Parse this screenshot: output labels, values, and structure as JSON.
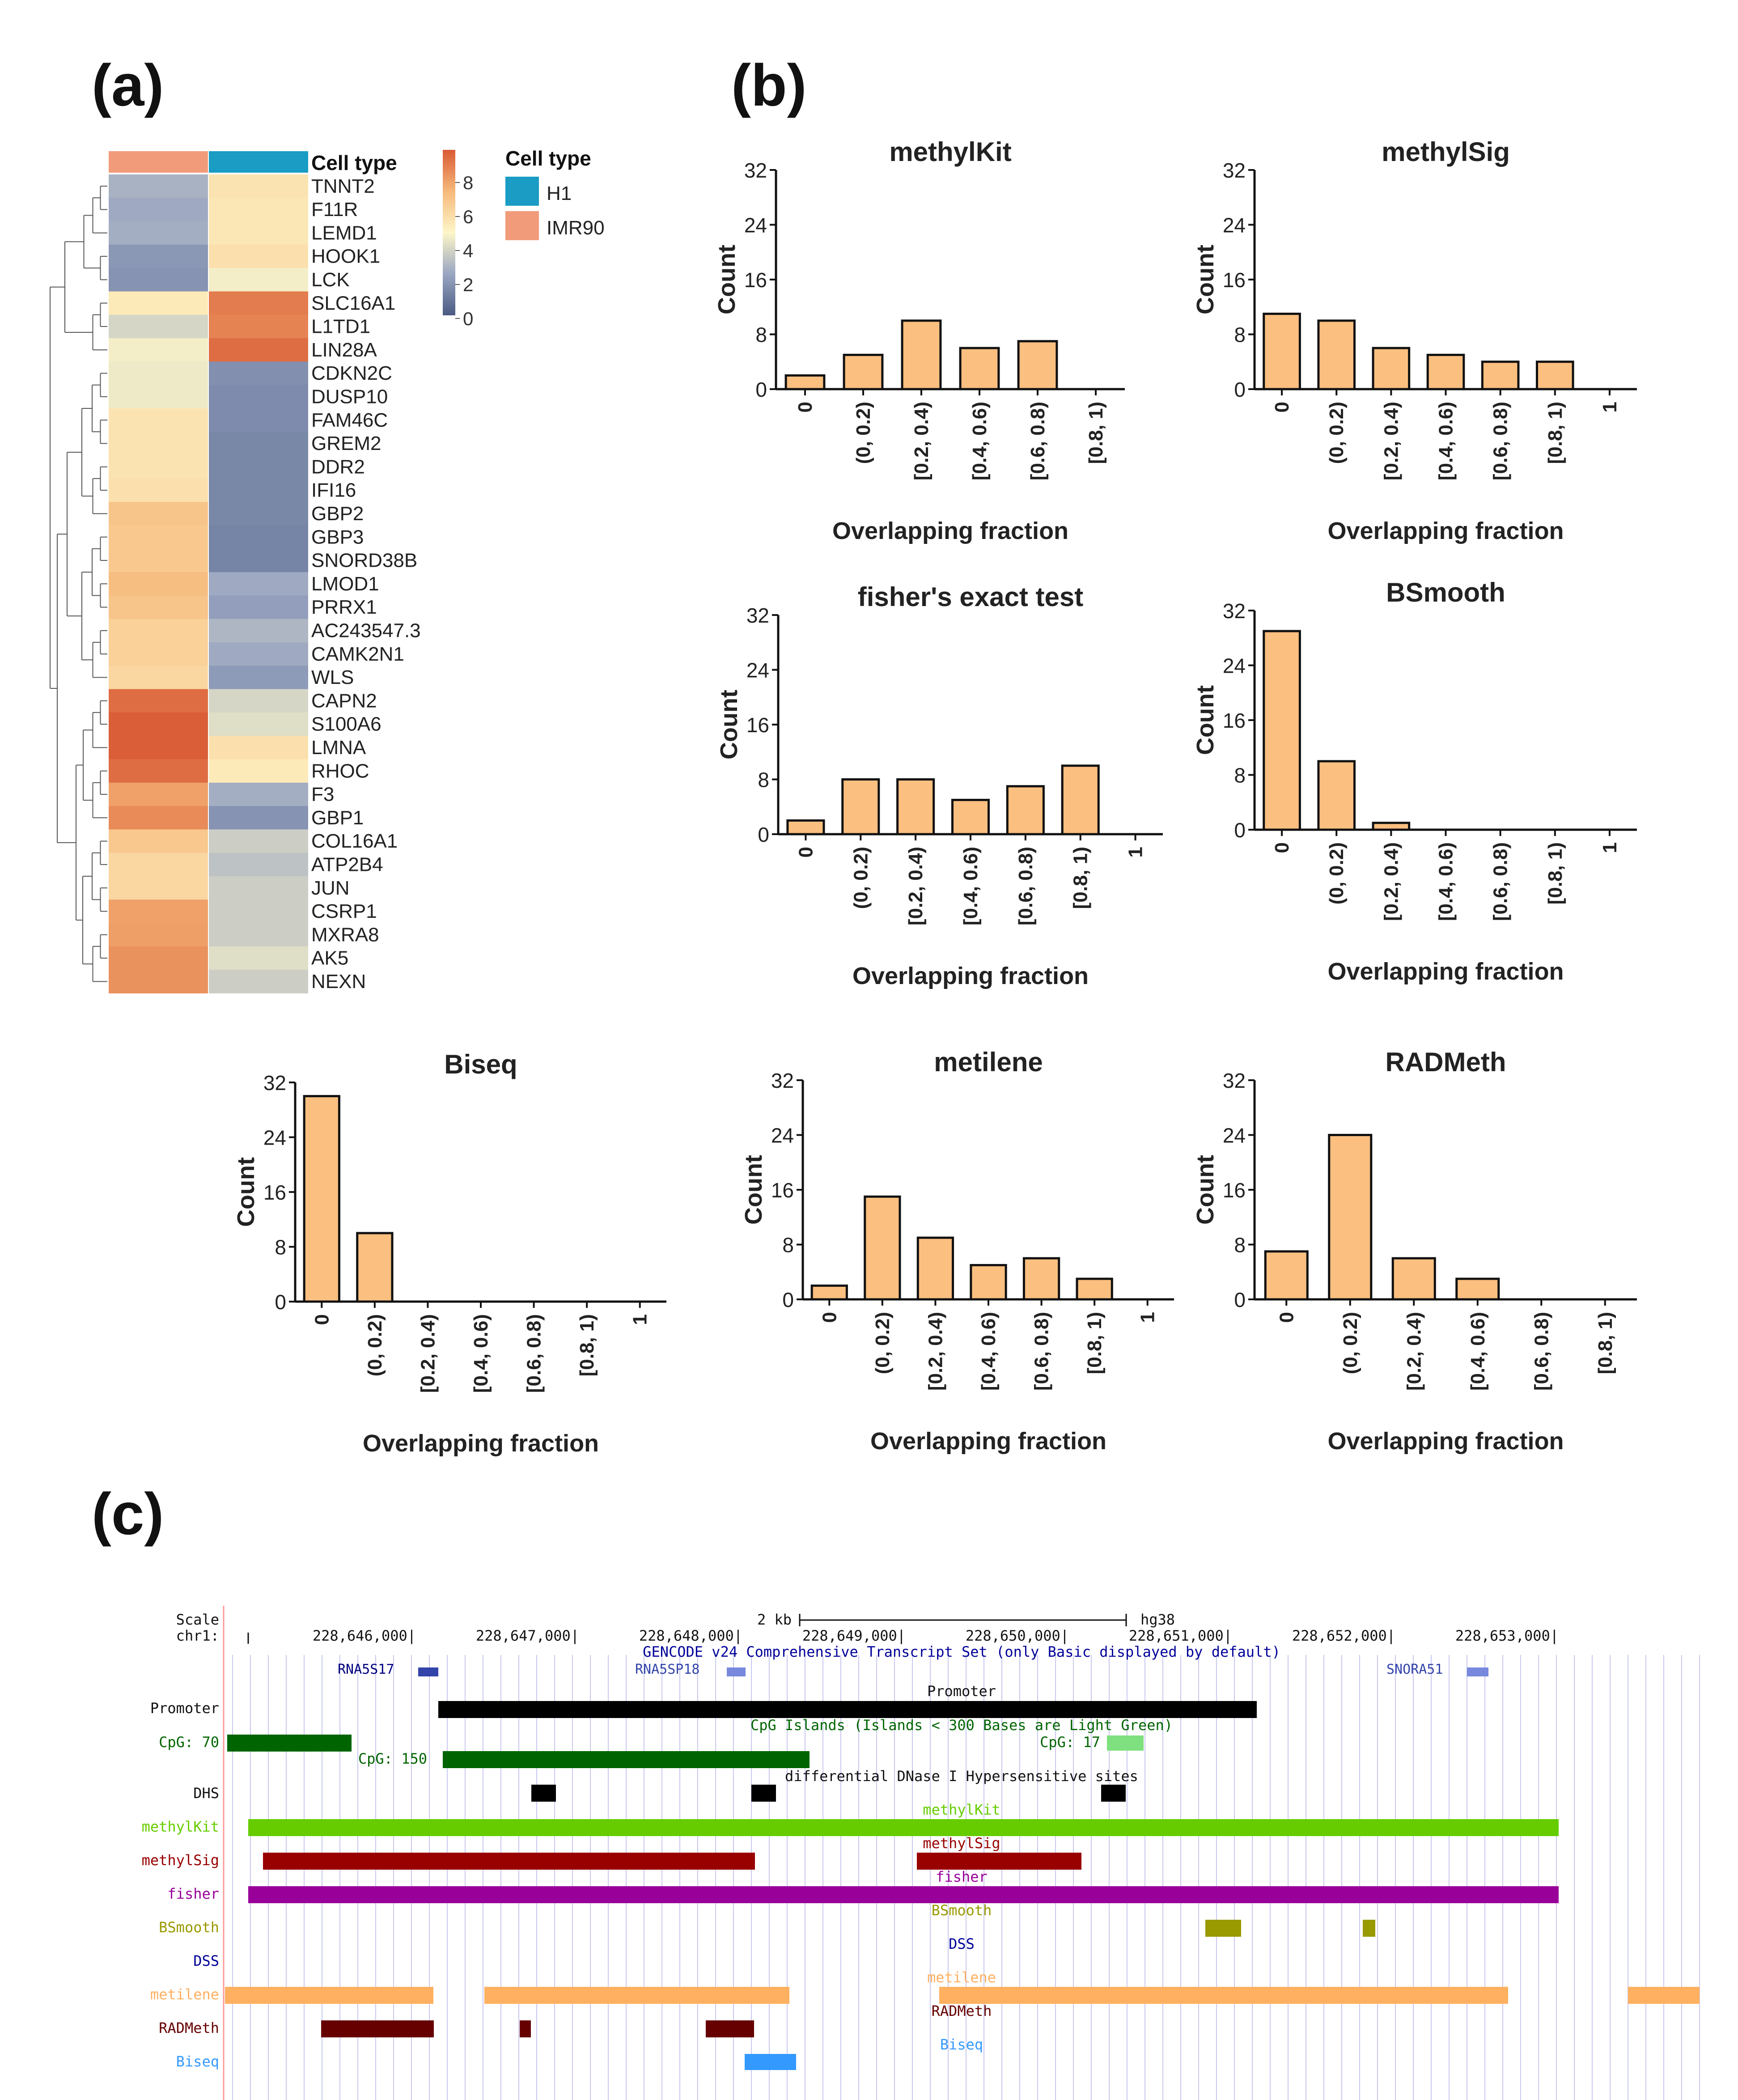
{
  "panels": {
    "a": "(a)",
    "b": "(b)",
    "c": "(c)"
  },
  "heatmap": {
    "annotation_label": "Cell type",
    "columns": [
      "IMR90",
      "H1"
    ],
    "colorbar_ticks": [
      "8",
      "6",
      "4",
      "2",
      "0"
    ],
    "legend_title": "Cell type",
    "legend_items": [
      {
        "label": "H1",
        "color": "#1a9cc4"
      },
      {
        "label": "IMR90",
        "color": "#f19b7b"
      }
    ],
    "rows": [
      {
        "gene": "TNNT2",
        "v": [
          2.3,
          4.6
        ]
      },
      {
        "gene": "F11R",
        "v": [
          2.1,
          4.5
        ]
      },
      {
        "gene": "LEMD1",
        "v": [
          2.2,
          4.5
        ]
      },
      {
        "gene": "HOOK1",
        "v": [
          1.6,
          4.7
        ]
      },
      {
        "gene": "LCK",
        "v": [
          1.5,
          3.8
        ]
      },
      {
        "gene": "SLC16A1",
        "v": [
          4.4,
          7.6
        ]
      },
      {
        "gene": "L1TD1",
        "v": [
          3.2,
          7.4
        ]
      },
      {
        "gene": "LIN28A",
        "v": [
          3.8,
          8.0
        ]
      },
      {
        "gene": "CDKN2C",
        "v": [
          3.7,
          1.4
        ]
      },
      {
        "gene": "DUSP10",
        "v": [
          3.7,
          1.3
        ]
      },
      {
        "gene": "FAM46C",
        "v": [
          4.6,
          1.3
        ]
      },
      {
        "gene": "GREM2",
        "v": [
          4.6,
          1.2
        ]
      },
      {
        "gene": "DDR2",
        "v": [
          4.6,
          1.2
        ]
      },
      {
        "gene": "IFI16",
        "v": [
          4.7,
          1.2
        ]
      },
      {
        "gene": "GBP2",
        "v": [
          5.6,
          1.2
        ]
      },
      {
        "gene": "GBP3",
        "v": [
          5.5,
          1.1
        ]
      },
      {
        "gene": "SNORD38B",
        "v": [
          5.5,
          1.1
        ]
      },
      {
        "gene": "LMOD1",
        "v": [
          5.8,
          2.1
        ]
      },
      {
        "gene": "PRRX1",
        "v": [
          5.6,
          1.8
        ]
      },
      {
        "gene": "AC243547.3",
        "v": [
          5.2,
          2.4
        ]
      },
      {
        "gene": "CAMK2N1",
        "v": [
          5.2,
          2.1
        ]
      },
      {
        "gene": "WLS",
        "v": [
          5.0,
          1.7
        ]
      },
      {
        "gene": "CAPN2",
        "v": [
          8.0,
          3.2
        ]
      },
      {
        "gene": "S100A6",
        "v": [
          8.4,
          3.4
        ]
      },
      {
        "gene": "LMNA",
        "v": [
          8.4,
          4.7
        ]
      },
      {
        "gene": "RHOC",
        "v": [
          8.0,
          4.4
        ]
      },
      {
        "gene": "F3",
        "v": [
          6.6,
          2.2
        ]
      },
      {
        "gene": "GBP1",
        "v": [
          7.2,
          1.5
        ]
      },
      {
        "gene": "COL16A1",
        "v": [
          5.5,
          3.0
        ]
      },
      {
        "gene": "ATP2B4",
        "v": [
          5.0,
          2.7
        ]
      },
      {
        "gene": "JUN",
        "v": [
          5.0,
          3.0
        ]
      },
      {
        "gene": "CSRP1",
        "v": [
          6.6,
          3.0
        ]
      },
      {
        "gene": "MXRA8",
        "v": [
          6.7,
          3.0
        ]
      },
      {
        "gene": "AK5",
        "v": [
          7.0,
          3.4
        ]
      },
      {
        "gene": "NEXN",
        "v": [
          7.0,
          3.0
        ]
      }
    ]
  },
  "chart_data": [
    {
      "type": "bar",
      "title": "methylKit",
      "xlabel": "Overlapping fraction",
      "ylabel": "Count",
      "yticks": [
        "0",
        "8",
        "16",
        "24",
        "32"
      ],
      "ylim": [
        0,
        32
      ],
      "categories": [
        "0",
        "(0, 0.2)",
        "[0.2, 0.4)",
        "[0.4, 0.6)",
        "[0.6, 0.8)",
        "[0.8, 1)"
      ],
      "values": [
        2,
        5,
        10,
        6,
        7,
        0
      ]
    },
    {
      "type": "bar",
      "title": "methylSig",
      "xlabel": "Overlapping fraction",
      "ylabel": "Count",
      "yticks": [
        "0",
        "8",
        "16",
        "24",
        "32"
      ],
      "ylim": [
        0,
        32
      ],
      "categories": [
        "0",
        "(0, 0.2)",
        "[0.2, 0.4)",
        "[0.4, 0.6)",
        "[0.6, 0.8)",
        "[0.8, 1)",
        "1"
      ],
      "values": [
        11,
        10,
        6,
        5,
        4,
        4,
        0
      ]
    },
    {
      "type": "bar",
      "title": "fisher's exact test",
      "xlabel": "Overlapping fraction",
      "ylabel": "Count",
      "yticks": [
        "0",
        "8",
        "16",
        "24",
        "32"
      ],
      "ylim": [
        0,
        32
      ],
      "categories": [
        "0",
        "(0, 0.2)",
        "[0.2, 0.4)",
        "[0.4, 0.6)",
        "[0.6, 0.8)",
        "[0.8, 1)",
        "1"
      ],
      "values": [
        2,
        8,
        8,
        5,
        7,
        10,
        0
      ]
    },
    {
      "type": "bar",
      "title": "BSmooth",
      "xlabel": "Overlapping fraction",
      "ylabel": "Count",
      "yticks": [
        "0",
        "8",
        "16",
        "24",
        "32"
      ],
      "ylim": [
        0,
        32
      ],
      "categories": [
        "0",
        "(0, 0.2)",
        "[0.2, 0.4)",
        "[0.4, 0.6)",
        "[0.6, 0.8)",
        "[0.8, 1)",
        "1"
      ],
      "values": [
        29,
        10,
        1,
        0,
        0,
        0,
        0
      ]
    },
    {
      "type": "bar",
      "title": "Biseq",
      "xlabel": "Overlapping fraction",
      "ylabel": "Count",
      "yticks": [
        "0",
        "8",
        "16",
        "24",
        "32"
      ],
      "ylim": [
        0,
        32
      ],
      "categories": [
        "0",
        "(0, 0.2)",
        "[0.2, 0.4)",
        "[0.4, 0.6)",
        "[0.6, 0.8)",
        "[0.8, 1)",
        "1"
      ],
      "values": [
        30,
        10,
        0,
        0,
        0,
        0,
        0
      ]
    },
    {
      "type": "bar",
      "title": "metilene",
      "xlabel": "Overlapping fraction",
      "ylabel": "Count",
      "yticks": [
        "0",
        "8",
        "16",
        "24",
        "32"
      ],
      "ylim": [
        0,
        32
      ],
      "categories": [
        "0",
        "(0, 0.2)",
        "[0.2, 0.4)",
        "[0.4, 0.6)",
        "[0.6, 0.8)",
        "[0.8, 1)",
        "1"
      ],
      "values": [
        2,
        15,
        9,
        5,
        6,
        3,
        0
      ]
    },
    {
      "type": "bar",
      "title": "RADMeth",
      "xlabel": "Overlapping fraction",
      "ylabel": "Count",
      "yticks": [
        "0",
        "8",
        "16",
        "24",
        "32"
      ],
      "ylim": [
        0,
        32
      ],
      "categories": [
        "0",
        "(0, 0.2)",
        "[0.2, 0.4)",
        "[0.4, 0.6)",
        "[0.6, 0.8)",
        "[0.8, 1)"
      ],
      "values": [
        7,
        24,
        6,
        3,
        0,
        0
      ]
    }
  ],
  "browser": {
    "scale_label": "Scale",
    "chr_label": "chr1:",
    "scale_bar_label": "2 kb",
    "assembly": "hg38",
    "coords": [
      "228,646,000|",
      "228,647,000|",
      "228,648,000|",
      "228,649,000|",
      "228,650,000|",
      "228,651,000|",
      "228,652,000|",
      "228,653,000|"
    ],
    "gencode_title": "GENCODE v24 Comprehensive Transcript Set (only Basic displayed by default)",
    "genes": [
      "RNA5S17",
      "RNA5SP18",
      "SNORA51"
    ],
    "tracks": {
      "promoter": {
        "label": "Promoter",
        "title": "Promoter",
        "color": "#000000"
      },
      "cpg": {
        "label": "CpG: 70",
        "title": "CpG Islands (Islands < 300 Bases are Light Green)",
        "label2": "CpG: 150",
        "label3": "CpG: 17",
        "color": "#006400",
        "light": "#7fe07f"
      },
      "dhs": {
        "label": "DHS",
        "title": "differential DNase I Hypersensitive sites",
        "color": "#000000"
      },
      "methylkit": {
        "label": "methylKit",
        "title": "methylKit",
        "color": "#66cc00"
      },
      "methylsig": {
        "label": "methylSig",
        "title": "methylSig",
        "color": "#990000"
      },
      "fisher": {
        "label": "fisher",
        "title": "fisher",
        "color": "#990099"
      },
      "bsmooth": {
        "label": "BSmooth",
        "title": "BSmooth",
        "color": "#999900"
      },
      "dss": {
        "label": "DSS",
        "title": "DSS",
        "color": "#000099"
      },
      "metilene": {
        "label": "metilene",
        "title": "metilene",
        "color": "#ffb060"
      },
      "radmeth": {
        "label": "RADMeth",
        "title": "RADMeth",
        "color": "#660000"
      },
      "biseq": {
        "label": "Biseq",
        "title": "Biseq",
        "color": "#3399ff"
      }
    }
  }
}
